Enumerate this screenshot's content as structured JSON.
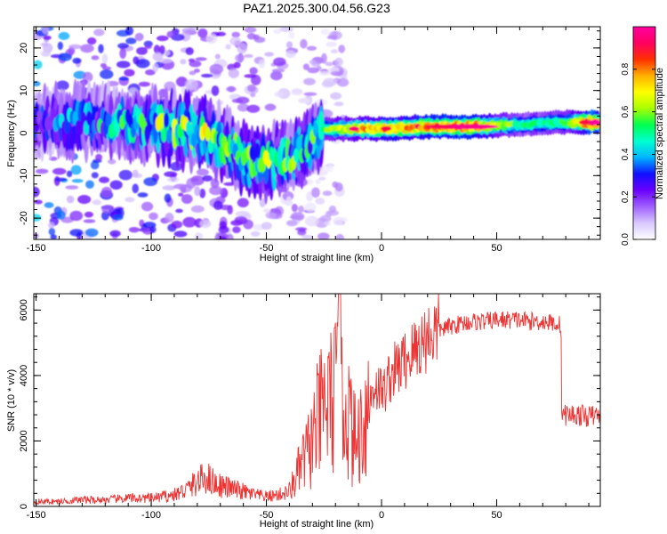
{
  "title": "PAZ1.2025.300.04.56.G23",
  "chart_data": [
    {
      "type": "heatmap",
      "xlabel": "Height of straight line (km)",
      "ylabel": "Frequency (Hz)",
      "xlim": [
        -151,
        95
      ],
      "ylim": [
        -25,
        25
      ],
      "xticks": [
        -150,
        -100,
        -50,
        0,
        50
      ],
      "yticks": [
        -20,
        -10,
        0,
        10,
        20
      ],
      "colorbar": {
        "label": "Normalized spectral amplitude",
        "range": [
          0,
          1
        ],
        "ticks": [
          "0.0",
          "0.2",
          "0.4",
          "0.6",
          "0.8"
        ],
        "colors": [
          "#ffffff",
          "#d8c8ff",
          "#a060ff",
          "#6a00ff",
          "#1010ff",
          "#00b4ff",
          "#00ffd0",
          "#00ff50",
          "#a8ff00",
          "#ffff00",
          "#ffb000",
          "#ff3000",
          "#ff0060",
          "#ff00a0"
        ]
      },
      "ridge": [
        {
          "x": -150,
          "f": 2,
          "amp": 0.3
        },
        {
          "x": -130,
          "f": 3,
          "amp": 0.4
        },
        {
          "x": -110,
          "f": 2,
          "amp": 0.45
        },
        {
          "x": -100,
          "f": 2,
          "amp": 0.55
        },
        {
          "x": -90,
          "f": 1,
          "amp": 0.6
        },
        {
          "x": -80,
          "f": 0,
          "amp": 0.6
        },
        {
          "x": -70,
          "f": -2,
          "amp": 0.55
        },
        {
          "x": -60,
          "f": -6,
          "amp": 0.55
        },
        {
          "x": -50,
          "f": -7,
          "amp": 0.55
        },
        {
          "x": -40,
          "f": -6,
          "amp": 0.6
        },
        {
          "x": -32,
          "f": -3,
          "amp": 0.5
        },
        {
          "x": -25,
          "f": 1,
          "amp": 0.55
        },
        {
          "x": -10,
          "f": 1,
          "amp": 0.75
        },
        {
          "x": 0,
          "f": 1,
          "amp": 0.8
        },
        {
          "x": 20,
          "f": 1.5,
          "amp": 0.85
        },
        {
          "x": 40,
          "f": 1.5,
          "amp": 0.9
        },
        {
          "x": 60,
          "f": 2,
          "amp": 0.5
        },
        {
          "x": 80,
          "f": 2.5,
          "amp": 0.55
        },
        {
          "x": 90,
          "f": 2.5,
          "amp": 0.95
        }
      ]
    },
    {
      "type": "line",
      "xlabel": "Height of straight line (km)",
      "ylabel": "SNR (10 * v/v)",
      "xlim": [
        -151,
        95
      ],
      "ylim": [
        0,
        6500
      ],
      "xticks": [
        -150,
        -100,
        -50,
        0,
        50
      ],
      "yticks": [
        0,
        2000,
        4000,
        6000
      ],
      "color": "#ee3333",
      "series": [
        {
          "name": "SNR",
          "x": [
            -151,
            -140,
            -130,
            -120,
            -110,
            -100,
            -90,
            -85,
            -80,
            -76,
            -72,
            -68,
            -60,
            -55,
            -50,
            -45,
            -40,
            -37,
            -34,
            -31,
            -28,
            -25,
            -22,
            -19,
            -17,
            -15,
            -13,
            -11,
            -9,
            -7,
            -5,
            -3,
            -1,
            1,
            3,
            5,
            8,
            12,
            16,
            20,
            25,
            30,
            35,
            40,
            45,
            50,
            55,
            60,
            65,
            70,
            75,
            78,
            79,
            80,
            85,
            90,
            95
          ],
          "y": [
            150,
            150,
            200,
            200,
            250,
            250,
            350,
            500,
            750,
            900,
            700,
            600,
            450,
            350,
            300,
            350,
            450,
            900,
            1400,
            1800,
            2500,
            3000,
            3200,
            3400,
            2900,
            3100,
            2300,
            1900,
            2400,
            2800,
            3300,
            3700,
            3600,
            3500,
            3900,
            4100,
            4300,
            4600,
            4900,
            5200,
            5400,
            5500,
            5600,
            5650,
            5650,
            5700,
            5700,
            5700,
            5650,
            5650,
            5600,
            5550,
            2800,
            2800,
            2800,
            2750,
            2800
          ]
        }
      ]
    }
  ]
}
